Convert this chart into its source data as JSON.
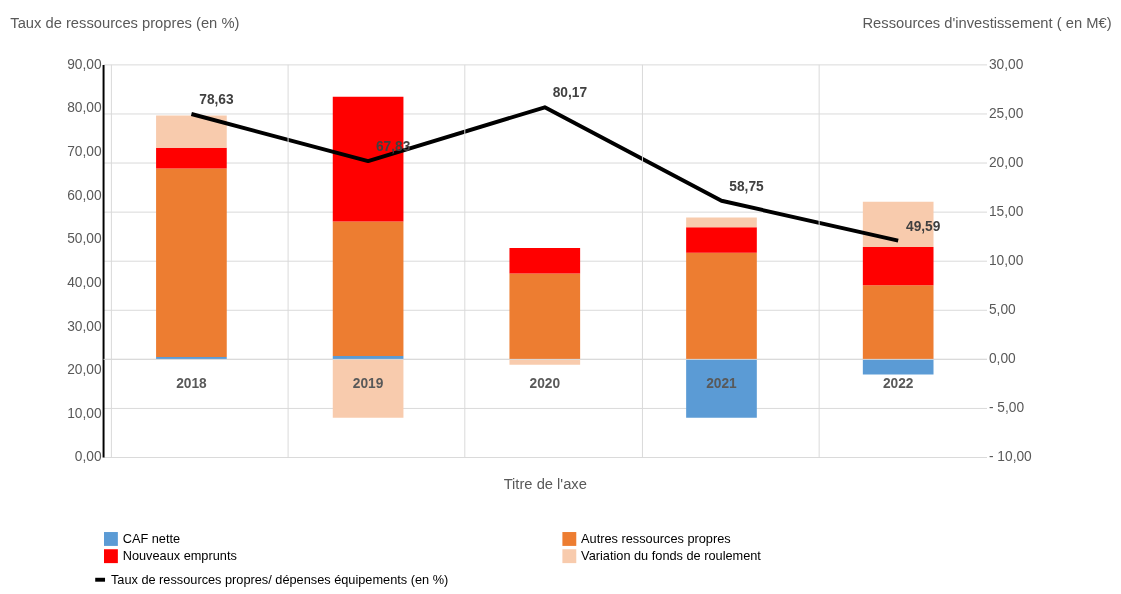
{
  "chart_data": {
    "type": "bar",
    "stacked": true,
    "categories": [
      "2018",
      "2019",
      "2020",
      "2021",
      "2022"
    ],
    "xlabel": "Titre de l'axe",
    "ylabel": "Taux de ressources propres (en %)",
    "y2label": "Ressources d'investissement ( en M€)",
    "ylim": [
      0,
      90
    ],
    "yticks": [
      {
        "value": 0,
        "label": "0,00"
      },
      {
        "value": 10,
        "label": "10,00"
      },
      {
        "value": 20,
        "label": "20,00"
      },
      {
        "value": 30,
        "label": "30,00"
      },
      {
        "value": 40,
        "label": "40,00"
      },
      {
        "value": 50,
        "label": "50,00"
      },
      {
        "value": 60,
        "label": "60,00"
      },
      {
        "value": 70,
        "label": "70,00"
      },
      {
        "value": 80,
        "label": "80,00"
      },
      {
        "value": 90,
        "label": "90,00"
      }
    ],
    "y2lim": [
      -10,
      30
    ],
    "y2ticks": [
      {
        "value": -10,
        "label": "- 10,00"
      },
      {
        "value": -5,
        "label": "- 5,00"
      },
      {
        "value": 0,
        "label": "0,00"
      },
      {
        "value": 5,
        "label": "5,00"
      },
      {
        "value": 10,
        "label": "10,00"
      },
      {
        "value": 15,
        "label": "15,00"
      },
      {
        "value": 20,
        "label": "20,00"
      },
      {
        "value": 25,
        "label": "25,00"
      },
      {
        "value": 30,
        "label": "30,00"
      }
    ],
    "grid": true,
    "legend": "bottom",
    "series": [
      {
        "name": "CAF nette",
        "color": "#5b9bd5",
        "axis": "y2",
        "values": [
          0.2,
          0.3,
          0,
          -6.0,
          -1.6
        ]
      },
      {
        "name": "Autres ressources propres",
        "color": "#ed7d31",
        "axis": "y2",
        "values": [
          19.2,
          13.7,
          8.7,
          10.8,
          7.5
        ]
      },
      {
        "name": "Nouveaux emprunts",
        "color": "#ff0000",
        "axis": "y2",
        "values": [
          2.1,
          12.7,
          2.6,
          2.6,
          3.9
        ]
      },
      {
        "name": "Variation du fonds de roulement",
        "color": "#f8cbad",
        "axis": "y2",
        "values": [
          3.3,
          -6.0,
          -0.6,
          1.0,
          4.6
        ]
      },
      {
        "name": "Taux de ressources propres/ dépenses équipements (en %)",
        "type": "line",
        "color": "#000000",
        "axis": "y",
        "line_style": "solid",
        "marker": "none",
        "values": [
          78.63,
          67.83,
          80.17,
          58.75,
          49.59
        ],
        "value_labels": [
          "78,63",
          "67,83",
          "80,17",
          "58,75",
          "49,59"
        ]
      }
    ]
  }
}
